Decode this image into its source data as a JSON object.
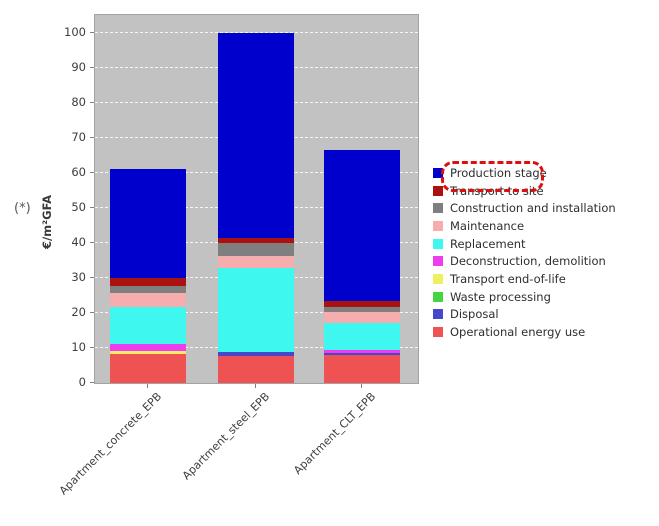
{
  "side_note": "(*)",
  "chart_data": {
    "type": "bar",
    "subtype": "stacked",
    "title": "",
    "ylabel": "€/m²GFA",
    "xlabel": "",
    "categories": [
      "Apartment_concrete_EPB",
      "Apartment_steel_EPB",
      "Apartment_CLT_EPB"
    ],
    "y_ticks": [
      0,
      10,
      20,
      30,
      40,
      50,
      60,
      70,
      80,
      90,
      100
    ],
    "ylim": [
      0,
      105
    ],
    "grid": "horizontal-dashed-white",
    "plot_background": "#c2c2c2",
    "legend_position": "right",
    "series": [
      {
        "name": "Production stage",
        "color": "#0000cc",
        "values": [
          31.0,
          58.6,
          43.3
        ]
      },
      {
        "name": "Transport to site",
        "color": "#aa1111",
        "values": [
          2.3,
          1.4,
          1.6
        ]
      },
      {
        "name": "Construction and installation",
        "color": "#7f7f7f",
        "values": [
          2.2,
          3.6,
          1.6
        ]
      },
      {
        "name": "Maintenance",
        "color": "#f6adad",
        "values": [
          3.8,
          3.5,
          3.2
        ]
      },
      {
        "name": "Replacement",
        "color": "#3ef7ef",
        "values": [
          10.6,
          24.0,
          7.6
        ]
      },
      {
        "name": "Deconstruction, demolition",
        "color": "#ee3cee",
        "values": [
          2.1,
          0,
          0.7
        ]
      },
      {
        "name": "Transport end-of-life",
        "color": "#efef60",
        "values": [
          0.9,
          0,
          0
        ]
      },
      {
        "name": "Waste processing",
        "color": "#44d444",
        "values": [
          0,
          0,
          0
        ]
      },
      {
        "name": "Disposal",
        "color": "#4747cc",
        "values": [
          0,
          1.3,
          0.7
        ]
      },
      {
        "name": "Operational energy use",
        "color": "#ef5252",
        "values": [
          8.2,
          7.6,
          8.0
        ]
      }
    ],
    "bar_totals": [
      61.1,
      100.0,
      66.7
    ]
  },
  "annotation": {
    "type": "dashed-box",
    "target": "Production stage",
    "color": "#dd0f0f"
  }
}
